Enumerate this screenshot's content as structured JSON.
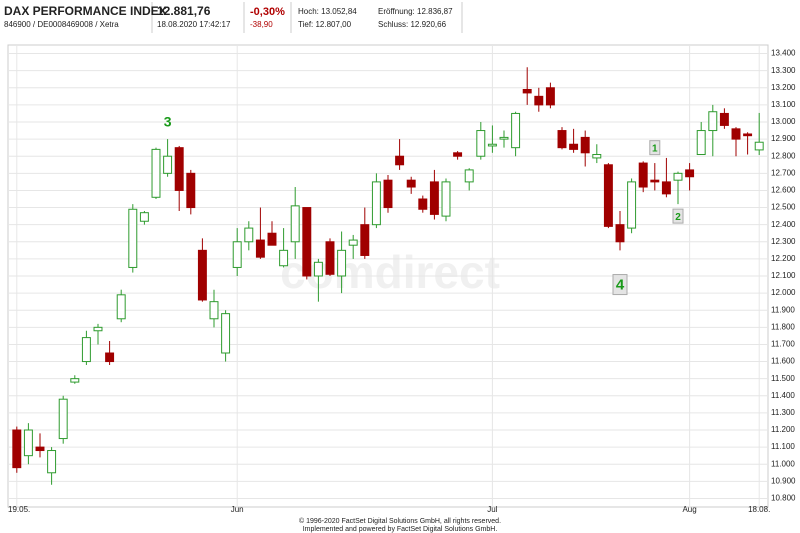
{
  "header": {
    "name": "DAX PERFORMANCE INDEX",
    "id": "846900 / DE0008469008 / Xetra",
    "price": "12.881,76",
    "datetime": "18.08.2020 17:42:17",
    "change_pct": "-0,30%",
    "change_abs": "-38,90",
    "stats": [
      "Hoch: 13.052,84",
      "Eröffnung: 12.836,87",
      "Tief: 12.807,00",
      "Schluss: 12.920,66"
    ]
  },
  "chart_data": {
    "type": "candlestick",
    "watermark": "comdirect",
    "categories": [
      "19.05.",
      null,
      null,
      null,
      null,
      null,
      null,
      null,
      null,
      null,
      null,
      null,
      null,
      null,
      null,
      null,
      null,
      null,
      null,
      "Jun",
      null,
      null,
      null,
      null,
      null,
      null,
      null,
      null,
      null,
      null,
      null,
      null,
      null,
      null,
      null,
      null,
      null,
      null,
      null,
      null,
      null,
      "Jul",
      null,
      null,
      null,
      null,
      null,
      null,
      null,
      null,
      null,
      null,
      null,
      null,
      null,
      null,
      null,
      null,
      "Aug",
      null,
      null,
      null,
      null,
      null,
      "18.08."
    ],
    "open": [
      11200,
      11050,
      11100,
      10950,
      11150,
      11480,
      11600,
      11780,
      11650,
      11850,
      12150,
      12420,
      12560,
      12700,
      12850,
      12700,
      12250,
      11850,
      11650,
      12150,
      12300,
      12310,
      12350,
      12160,
      12300,
      12500,
      12100,
      12300,
      12100,
      12280,
      12400,
      12400,
      12660,
      12800,
      12660,
      12550,
      12650,
      12450,
      12820,
      12650,
      12800,
      12860,
      12900,
      12850,
      13190,
      13150,
      13200,
      12950,
      12870,
      12910,
      12790,
      12750,
      12400,
      12380,
      12760,
      12660,
      12650,
      12660,
      12720,
      12810,
      12950,
      13050,
      12960,
      12930,
      12836.87
    ],
    "high": [
      11220,
      11240,
      11180,
      11100,
      11400,
      11520,
      11780,
      11820,
      11720,
      12020,
      12520,
      12480,
      12850,
      12900,
      12860,
      12720,
      12320,
      12020,
      11900,
      12380,
      12420,
      12500,
      12420,
      12380,
      12620,
      12500,
      12200,
      12320,
      12360,
      12340,
      12500,
      12700,
      12690,
      12900,
      12680,
      12570,
      12720,
      12670,
      12830,
      12730,
      13000,
      12980,
      12950,
      13060,
      13320,
      13200,
      13230,
      12970,
      12960,
      12950,
      12870,
      12760,
      12480,
      12670,
      12770,
      12760,
      12790,
      12710,
      12760,
      13000,
      13100,
      13080,
      12970,
      12940,
      13052.84
    ],
    "low": [
      10950,
      11000,
      11040,
      10880,
      11120,
      11470,
      11580,
      11700,
      11580,
      11830,
      12120,
      12400,
      12550,
      12680,
      12480,
      12460,
      11950,
      11800,
      11600,
      12100,
      12250,
      12200,
      12280,
      12150,
      12200,
      12080,
      11950,
      12100,
      12000,
      12200,
      12200,
      12380,
      12470,
      12720,
      12580,
      12470,
      12430,
      12420,
      12780,
      12600,
      12780,
      12820,
      12850,
      12800,
      13100,
      13060,
      13080,
      12840,
      12820,
      12740,
      12760,
      12380,
      12250,
      12350,
      12590,
      12600,
      12560,
      12520,
      12600,
      12810,
      12800,
      12960,
      12800,
      12810,
      12807
    ],
    "close": [
      10980,
      11200,
      11080,
      11080,
      11380,
      11500,
      11740,
      11800,
      11600,
      11990,
      12490,
      12470,
      12840,
      12800,
      12600,
      12500,
      11960,
      11950,
      11880,
      12300,
      12380,
      12210,
      12280,
      12250,
      12510,
      12100,
      12180,
      12110,
      12250,
      12310,
      12220,
      12650,
      12500,
      12750,
      12620,
      12490,
      12460,
      12650,
      12800,
      12720,
      12950,
      12870,
      12910,
      13050,
      13170,
      13100,
      13100,
      12850,
      12840,
      12820,
      12810,
      12390,
      12300,
      12650,
      12620,
      12650,
      12580,
      12700,
      12680,
      12950,
      13060,
      12980,
      12900,
      12920,
      12881.76
    ],
    "up_color": "#2e9b2e",
    "down_color": "#a00000",
    "annotations": [
      "3",
      "1",
      "2",
      "4"
    ],
    "ylim": [
      10750,
      13450
    ],
    "yticks": [
      {
        "value": 10800,
        "label": "10.800"
      },
      {
        "value": 10900,
        "label": "10.900"
      },
      {
        "value": 11000,
        "label": "11.000"
      },
      {
        "value": 11100,
        "label": "11.100"
      },
      {
        "value": 11200,
        "label": "11.200"
      },
      {
        "value": 11300,
        "label": "11.300"
      },
      {
        "value": 11400,
        "label": "11.400"
      },
      {
        "value": 11500,
        "label": "11.500"
      },
      {
        "value": 11600,
        "label": "11.600"
      },
      {
        "value": 11700,
        "label": "11.700"
      },
      {
        "value": 11800,
        "label": "11.800"
      },
      {
        "value": 11900,
        "label": "11.900"
      },
      {
        "value": 12000,
        "label": "12.000"
      },
      {
        "value": 12100,
        "label": "12.100"
      },
      {
        "value": 12200,
        "label": "12.200"
      },
      {
        "value": 12300,
        "label": "12.300"
      },
      {
        "value": 12400,
        "label": "12.400"
      },
      {
        "value": 12500,
        "label": "12.500"
      },
      {
        "value": 12600,
        "label": "12.600"
      },
      {
        "value": 12700,
        "label": "12.700"
      },
      {
        "value": 12800,
        "label": "12.800"
      },
      {
        "value": 12900,
        "label": "12.900"
      },
      {
        "value": 13000,
        "label": "13.000"
      },
      {
        "value": 13100,
        "label": "13.100"
      },
      {
        "value": 13200,
        "label": "13.200"
      },
      {
        "value": 13300,
        "label": "13.300"
      },
      {
        "value": 13400,
        "label": "13.400"
      }
    ],
    "grid": true
  },
  "footer": [
    "© 1996-2020 FactSet Digital Solutions GmbH, all rights reserved.",
    "Implemented and powered by FactSet Digital Solutions GmbH."
  ]
}
